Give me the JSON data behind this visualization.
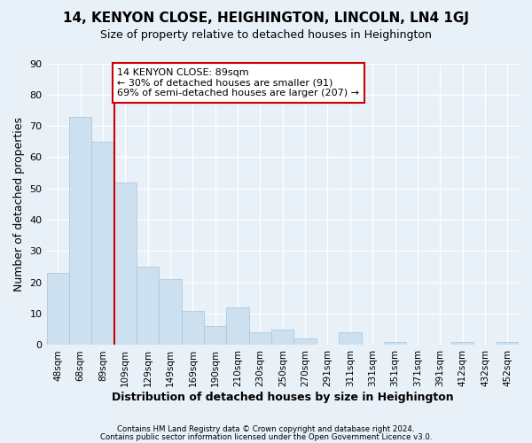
{
  "title1": "14, KENYON CLOSE, HEIGHINGTON, LINCOLN, LN4 1GJ",
  "title2": "Size of property relative to detached houses in Heighington",
  "xlabel": "Distribution of detached houses by size in Heighington",
  "ylabel": "Number of detached properties",
  "footnote1": "Contains HM Land Registry data © Crown copyright and database right 2024.",
  "footnote2": "Contains public sector information licensed under the Open Government Licence v3.0.",
  "categories": [
    "48sqm",
    "68sqm",
    "89sqm",
    "109sqm",
    "129sqm",
    "149sqm",
    "169sqm",
    "190sqm",
    "210sqm",
    "230sqm",
    "250sqm",
    "270sqm",
    "291sqm",
    "311sqm",
    "331sqm",
    "351sqm",
    "371sqm",
    "391sqm",
    "412sqm",
    "432sqm",
    "452sqm"
  ],
  "values": [
    23,
    73,
    65,
    52,
    25,
    21,
    11,
    6,
    12,
    4,
    5,
    2,
    0,
    4,
    0,
    1,
    0,
    0,
    1,
    0,
    1
  ],
  "bar_color": "#cde0ef",
  "bar_edge_color": "#a8c4d8",
  "bg_color": "#e8f0f8",
  "grid_color": "#ffffff",
  "redline_index": 2,
  "annotation_title": "14 KENYON CLOSE: 89sqm",
  "annotation_line1": "← 30% of detached houses are smaller (91)",
  "annotation_line2": "69% of semi-detached houses are larger (207) →",
  "annotation_box_color": "#ffffff",
  "annotation_box_edge": "#cc0000",
  "redline_color": "#cc0000",
  "ylim": [
    0,
    90
  ],
  "yticks": [
    0,
    10,
    20,
    30,
    40,
    50,
    60,
    70,
    80,
    90
  ]
}
